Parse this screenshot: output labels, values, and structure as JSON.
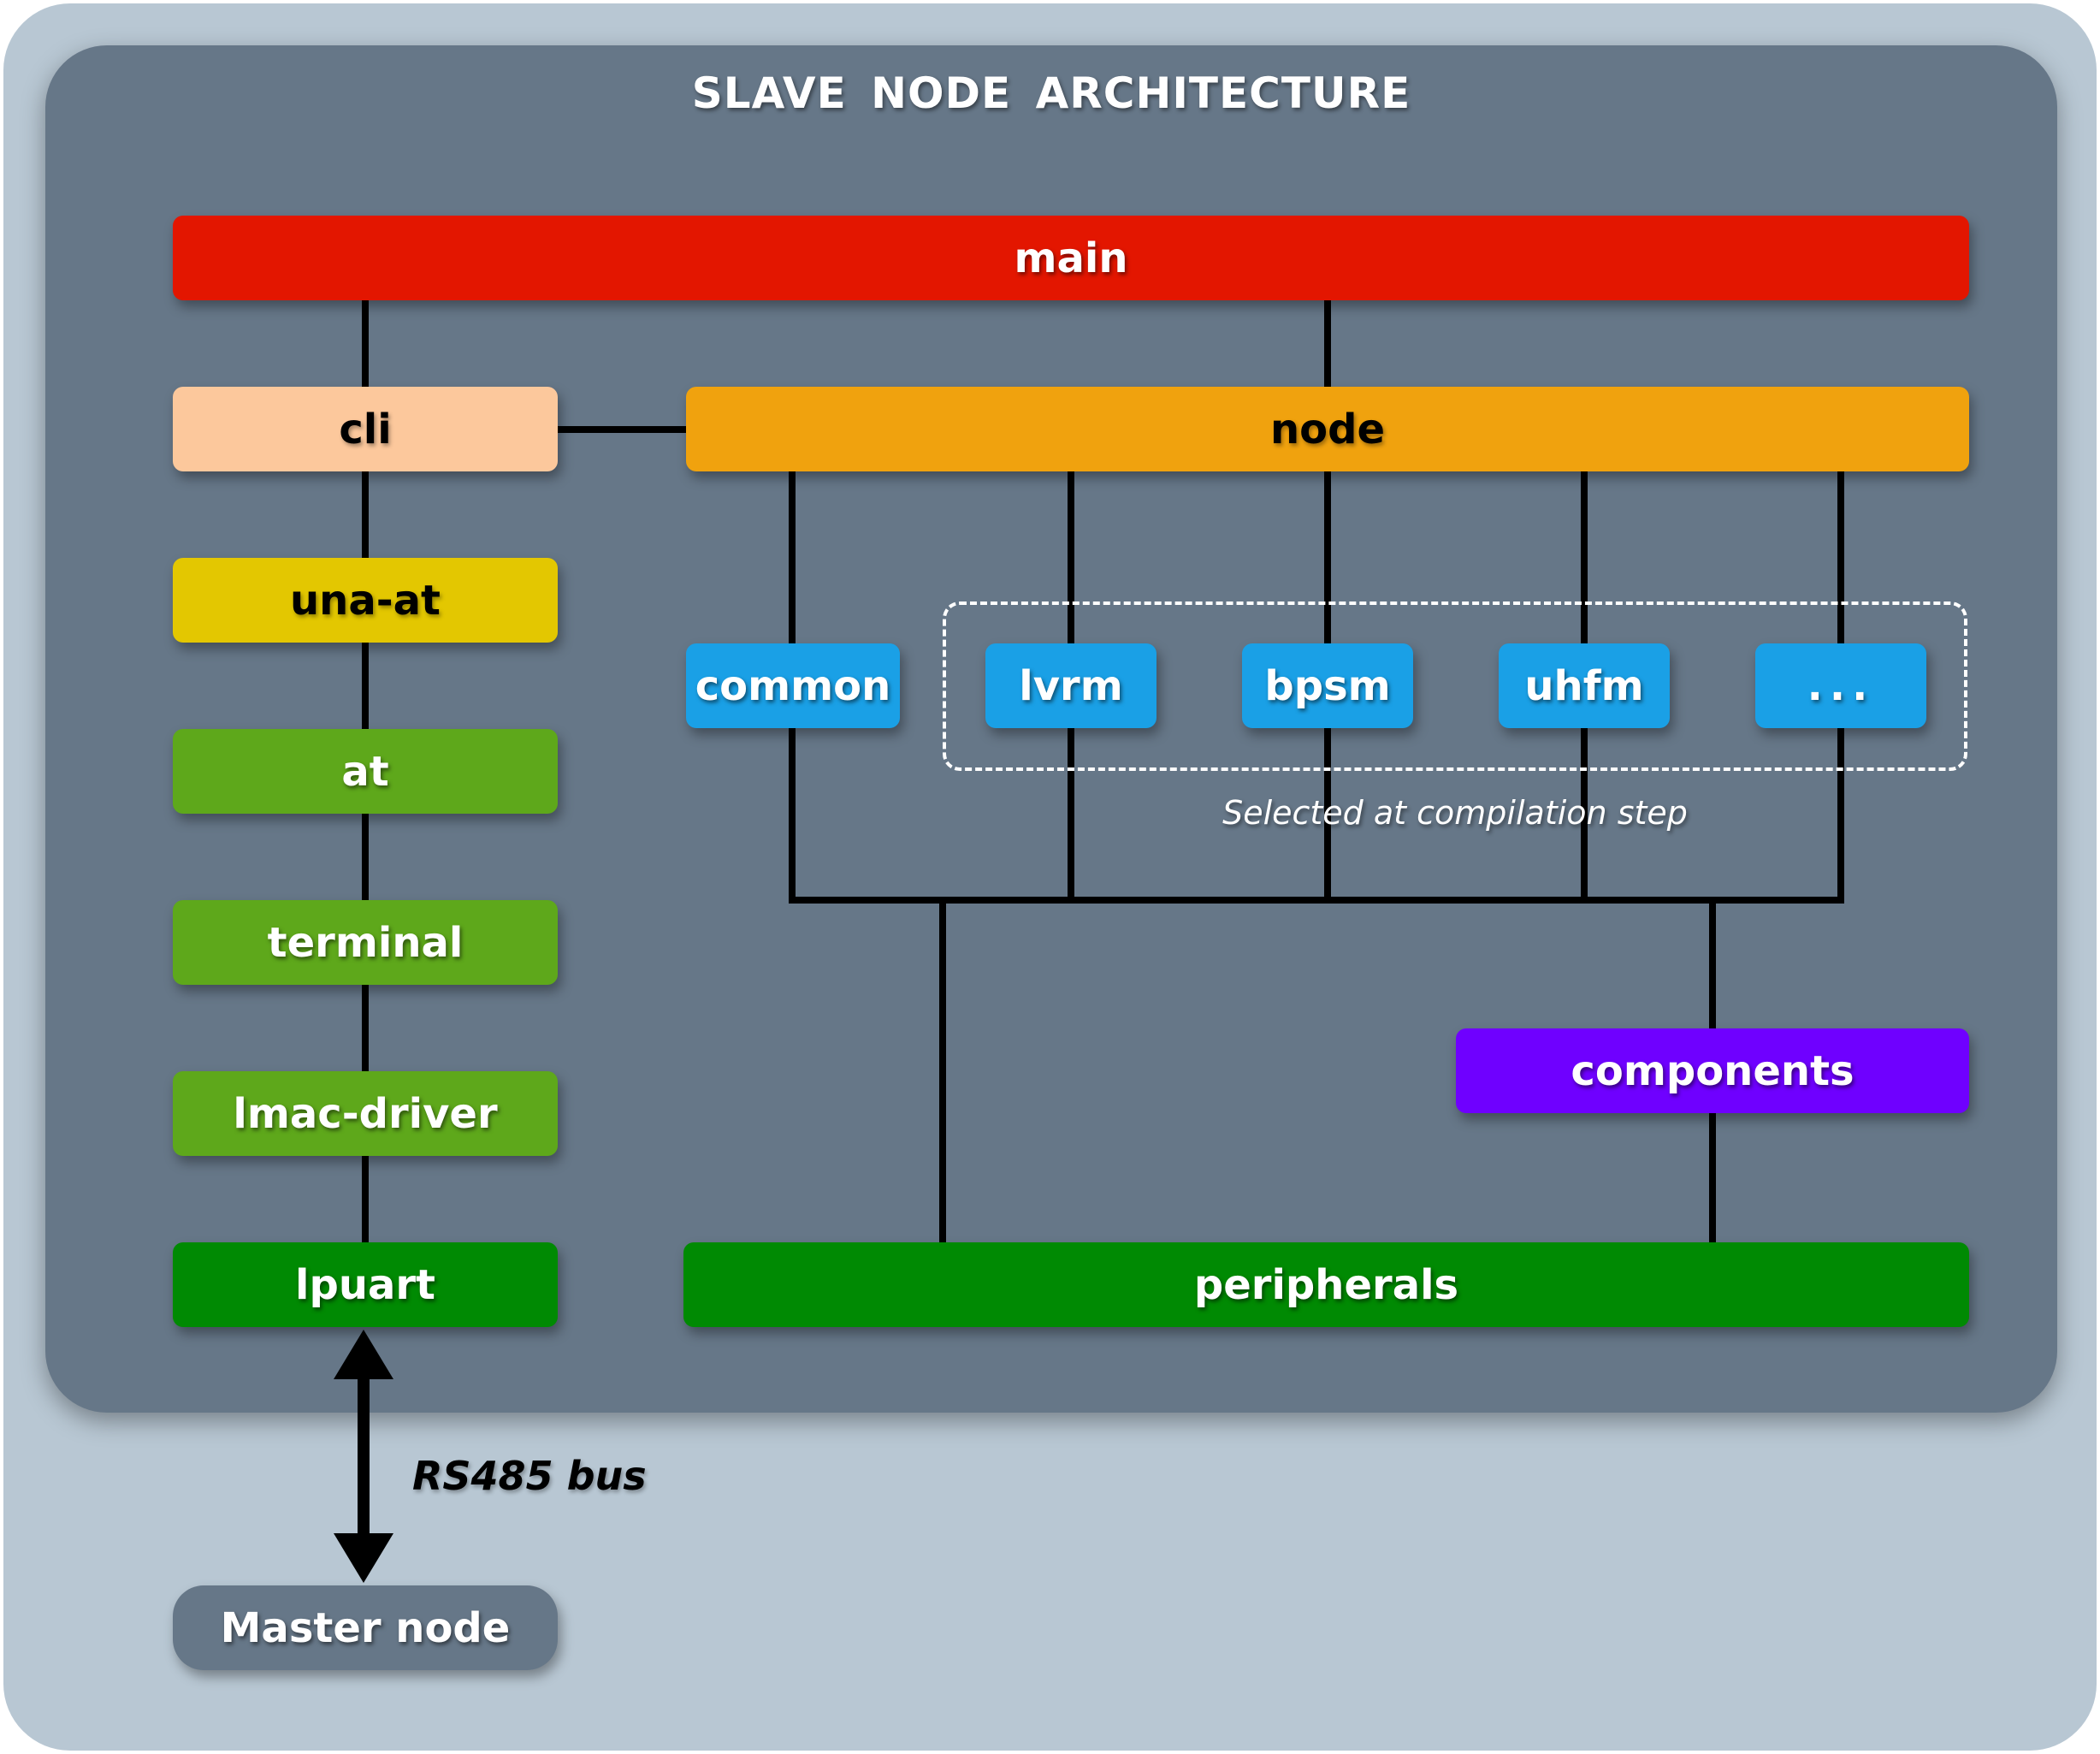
{
  "title": "SLAVE NODE ARCHITECTURE",
  "modules": {
    "main": "main",
    "cli": "cli",
    "node": "node",
    "una_at": "una-at",
    "at": "at",
    "terminal": "terminal",
    "lmac_driver": "lmac-driver",
    "lpuart": "lpuart",
    "common": "common",
    "lvrm": "lvrm",
    "bpsm": "bpsm",
    "uhfm": "uhfm",
    "more": "...",
    "components": "components",
    "peripherals": "peripherals"
  },
  "selection_note": "Selected at compilation step",
  "bus_label": "RS485 bus",
  "master_node": "Master node",
  "colors": {
    "outer_background": "#b8c7d3",
    "inner_panel": "#667788",
    "main": "#e31600",
    "cli": "#fcc89c",
    "node": "#f0a20e",
    "una_at": "#e3c701",
    "green_light": "#5ea81b",
    "green_dark": "#008a03",
    "blue": "#1aa0e6",
    "components": "#6f00ff"
  }
}
